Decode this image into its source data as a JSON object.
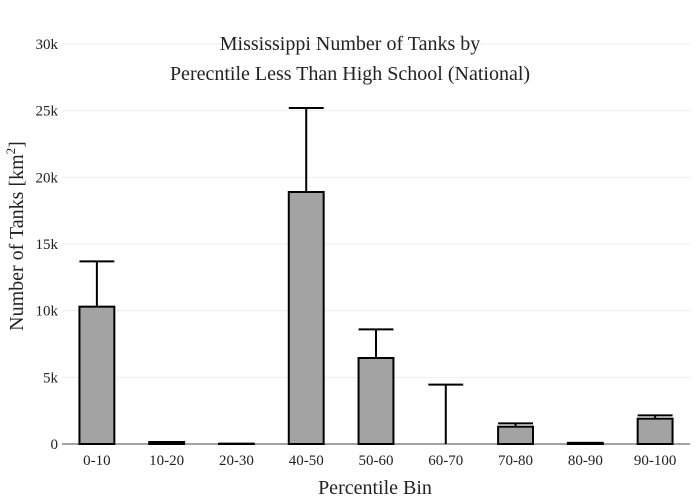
{
  "chart_data": {
    "type": "bar",
    "title_line1": "Mississippi Number of Tanks by",
    "title_line2": "Perecntile Less Than High School (National)",
    "xlabel": "Percentile Bin",
    "ylabel": "Number of Tanks  [km",
    "ylabel_sup": "2",
    "ylabel_end": "]",
    "categories": [
      "0-10",
      "10-20",
      "20-30",
      "40-50",
      "50-60",
      "60-70",
      "70-80",
      "80-90",
      "90-100"
    ],
    "values": [
      10300,
      150,
      20,
      18900,
      6450,
      0,
      1300,
      80,
      1900
    ],
    "error_upper": [
      13700,
      150,
      20,
      25200,
      8600,
      4450,
      1550,
      80,
      2150
    ],
    "ylim": [
      0,
      30000
    ],
    "yticks": [
      0,
      5000,
      10000,
      15000,
      20000,
      25000,
      30000
    ],
    "ytick_labels": [
      "0",
      "5k",
      "10k",
      "15k",
      "20k",
      "25k",
      "30k"
    ],
    "bar_color": "#a3a3a3",
    "grid": true
  }
}
